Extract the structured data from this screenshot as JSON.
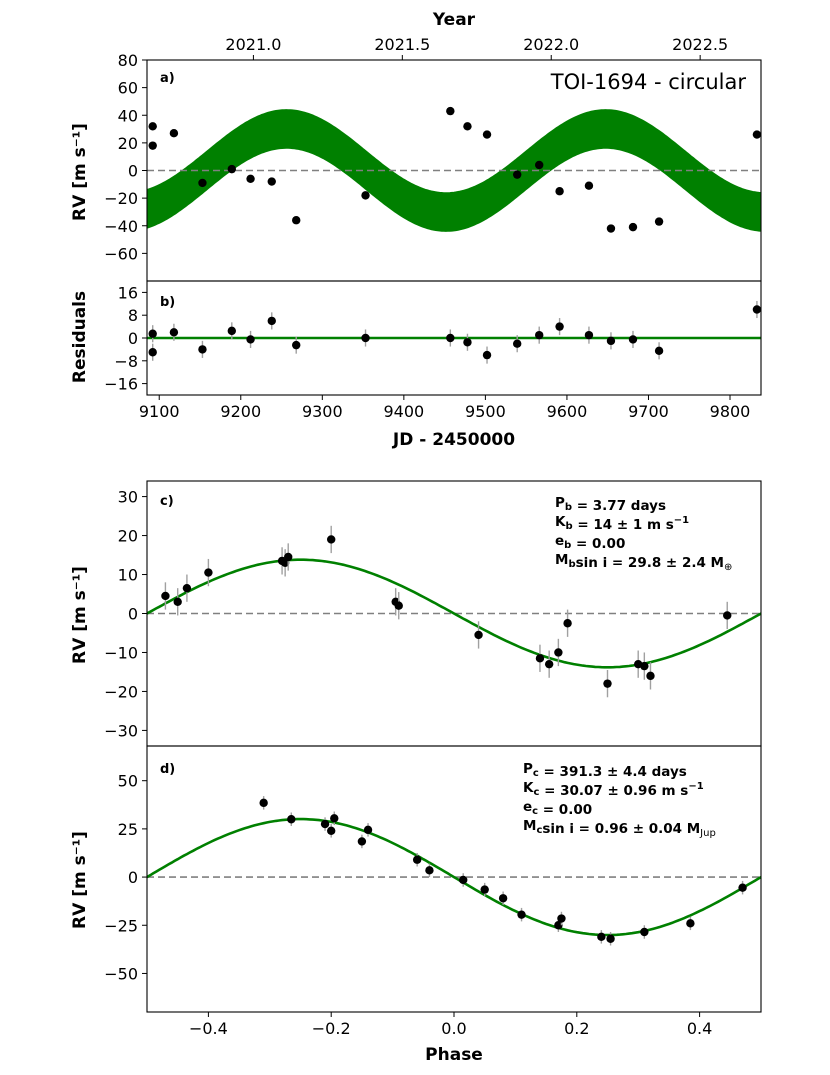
{
  "colors": {
    "model": "#008000",
    "zero": "#808080",
    "point": "#000000",
    "errorbar": "#a0a0a0"
  },
  "chart_data": [
    {
      "id": "a",
      "type": "scatter",
      "tag": "a)",
      "title": "TOI-1694 - circular",
      "top_axis": {
        "label": "Year",
        "ticks": [
          "2021.0",
          "2021.5",
          "2022.0",
          "2022.5"
        ]
      },
      "ylabel": "RV [m s⁻¹]",
      "xlim": [
        9085,
        9838
      ],
      "ylim": [
        -80,
        80
      ],
      "yticks": [
        -60,
        -40,
        -20,
        0,
        20,
        40,
        60,
        80
      ],
      "model_band": {
        "center_amp": 30.07,
        "half_width": 14,
        "period": 391.3,
        "t0": 9354
      },
      "points": [
        {
          "x": 9092,
          "y": 32
        },
        {
          "x": 9092,
          "y": 18
        },
        {
          "x": 9118,
          "y": 27
        },
        {
          "x": 9153,
          "y": -9
        },
        {
          "x": 9189,
          "y": 1
        },
        {
          "x": 9212,
          "y": -6
        },
        {
          "x": 9238,
          "y": -8
        },
        {
          "x": 9268,
          "y": -36
        },
        {
          "x": 9353,
          "y": -18
        },
        {
          "x": 9457,
          "y": 43
        },
        {
          "x": 9478,
          "y": 32
        },
        {
          "x": 9502,
          "y": 26
        },
        {
          "x": 9539,
          "y": -3
        },
        {
          "x": 9566,
          "y": 4
        },
        {
          "x": 9591,
          "y": -15
        },
        {
          "x": 9627,
          "y": -11
        },
        {
          "x": 9654,
          "y": -42
        },
        {
          "x": 9681,
          "y": -41
        },
        {
          "x": 9713,
          "y": -37
        },
        {
          "x": 9833,
          "y": 26
        }
      ]
    },
    {
      "id": "b",
      "type": "scatter",
      "tag": "b)",
      "ylabel": "Residuals",
      "xlabel": "JD - 2450000",
      "xlim": [
        9085,
        9838
      ],
      "ylim": [
        -20,
        20
      ],
      "yticks": [
        -16,
        -8,
        0,
        8,
        16
      ],
      "xticks": [
        9100,
        9200,
        9300,
        9400,
        9500,
        9600,
        9700,
        9800
      ],
      "points": [
        {
          "x": 9092,
          "y": 1.5,
          "err": 3
        },
        {
          "x": 9092,
          "y": -5,
          "err": 3
        },
        {
          "x": 9118,
          "y": 2,
          "err": 3
        },
        {
          "x": 9153,
          "y": -4,
          "err": 3
        },
        {
          "x": 9189,
          "y": 2.5,
          "err": 3
        },
        {
          "x": 9212,
          "y": -0.5,
          "err": 3
        },
        {
          "x": 9238,
          "y": 6,
          "err": 3
        },
        {
          "x": 9268,
          "y": -2.5,
          "err": 3
        },
        {
          "x": 9353,
          "y": 0,
          "err": 3
        },
        {
          "x": 9457,
          "y": 0,
          "err": 3
        },
        {
          "x": 9478,
          "y": -1.5,
          "err": 3
        },
        {
          "x": 9502,
          "y": -6,
          "err": 3
        },
        {
          "x": 9539,
          "y": -2,
          "err": 3
        },
        {
          "x": 9566,
          "y": 1,
          "err": 3
        },
        {
          "x": 9591,
          "y": 4,
          "err": 3
        },
        {
          "x": 9627,
          "y": 1,
          "err": 3
        },
        {
          "x": 9654,
          "y": -1,
          "err": 3
        },
        {
          "x": 9681,
          "y": -0.5,
          "err": 3
        },
        {
          "x": 9713,
          "y": -4.5,
          "err": 3
        },
        {
          "x": 9833,
          "y": 10,
          "err": 3
        }
      ]
    },
    {
      "id": "c",
      "type": "scatter",
      "tag": "c)",
      "ylabel": "RV [m s⁻¹]",
      "xlim": [
        -0.5,
        0.5
      ],
      "ylim": [
        -34,
        34
      ],
      "yticks": [
        -30,
        -20,
        -10,
        0,
        10,
        20,
        30
      ],
      "model": {
        "K": 13.8
      },
      "annotations": [
        {
          "base": "P",
          "sub": "b",
          "rest": " = 3.77 days"
        },
        {
          "base": "K",
          "sub": "b",
          "rest": " = 14 ± 1 m s",
          "sup": "−1"
        },
        {
          "base": "e",
          "sub": "b",
          "rest": " = 0.00"
        },
        {
          "base": "M",
          "sub": "b",
          "rest": "sin i = 29.8 ± 2.4 M",
          "sub2": "⊕"
        }
      ],
      "points": [
        {
          "x": -0.47,
          "y": 4.5,
          "err": 3.5
        },
        {
          "x": -0.45,
          "y": 3,
          "err": 3.5
        },
        {
          "x": -0.435,
          "y": 6.5,
          "err": 3.5
        },
        {
          "x": -0.4,
          "y": 10.5,
          "err": 3.5
        },
        {
          "x": -0.28,
          "y": 13.5,
          "err": 3.5
        },
        {
          "x": -0.275,
          "y": 13,
          "err": 3.5
        },
        {
          "x": -0.27,
          "y": 14.5,
          "err": 3.5
        },
        {
          "x": -0.2,
          "y": 19,
          "err": 3.5
        },
        {
          "x": -0.095,
          "y": 3,
          "err": 3.5
        },
        {
          "x": -0.09,
          "y": 2,
          "err": 3.5
        },
        {
          "x": 0.04,
          "y": -5.5,
          "err": 3.5
        },
        {
          "x": 0.14,
          "y": -11.5,
          "err": 3.5
        },
        {
          "x": 0.155,
          "y": -13,
          "err": 3.5
        },
        {
          "x": 0.17,
          "y": -10,
          "err": 3.5
        },
        {
          "x": 0.185,
          "y": -2.5,
          "err": 3.5
        },
        {
          "x": 0.25,
          "y": -18,
          "err": 3.5
        },
        {
          "x": 0.3,
          "y": -13,
          "err": 3.5
        },
        {
          "x": 0.31,
          "y": -13.5,
          "err": 3.5
        },
        {
          "x": 0.32,
          "y": -16,
          "err": 3.5
        },
        {
          "x": 0.445,
          "y": -0.5,
          "err": 3.5
        }
      ]
    },
    {
      "id": "d",
      "type": "scatter",
      "tag": "d)",
      "ylabel": "RV [m s⁻¹]",
      "xlabel": "Phase",
      "xlim": [
        -0.5,
        0.5
      ],
      "ylim": [
        -70,
        68
      ],
      "yticks": [
        -50,
        -25,
        0,
        25,
        50
      ],
      "xticks": [
        -0.4,
        -0.2,
        0.0,
        0.2,
        0.4
      ],
      "xtick_labels": [
        "−0.4",
        "−0.2",
        "0.0",
        "0.2",
        "0.4"
      ],
      "model": {
        "K": 30.07
      },
      "annotations": [
        {
          "base": "P",
          "sub": "c",
          "rest": " = 391.3 ± 4.4 days"
        },
        {
          "base": "K",
          "sub": "c",
          "rest": " = 30.07 ± 0.96 m s",
          "sup": "−1"
        },
        {
          "base": "e",
          "sub": "c",
          "rest": " = 0.00"
        },
        {
          "base": "M",
          "sub": "c",
          "rest": "sin i = 0.96 ± 0.04 M",
          "sub2": "Jup"
        }
      ],
      "points": [
        {
          "x": -0.31,
          "y": 38.5,
          "err": 3.5
        },
        {
          "x": -0.265,
          "y": 30,
          "err": 3.5
        },
        {
          "x": -0.21,
          "y": 27.5,
          "err": 3.5
        },
        {
          "x": -0.2,
          "y": 24,
          "err": 3.5
        },
        {
          "x": -0.195,
          "y": 30.5,
          "err": 3.5
        },
        {
          "x": -0.15,
          "y": 18.5,
          "err": 3.5
        },
        {
          "x": -0.14,
          "y": 24.5,
          "err": 3.5
        },
        {
          "x": -0.06,
          "y": 9,
          "err": 3.5
        },
        {
          "x": -0.04,
          "y": 3.5,
          "err": 3.5
        },
        {
          "x": 0.015,
          "y": -1.5,
          "err": 3.5
        },
        {
          "x": 0.05,
          "y": -6.5,
          "err": 3.5
        },
        {
          "x": 0.08,
          "y": -11,
          "err": 3.5
        },
        {
          "x": 0.11,
          "y": -19.5,
          "err": 3.5
        },
        {
          "x": 0.17,
          "y": -25,
          "err": 3.5
        },
        {
          "x": 0.175,
          "y": -21.5,
          "err": 3.5
        },
        {
          "x": 0.24,
          "y": -31,
          "err": 3.5
        },
        {
          "x": 0.255,
          "y": -32,
          "err": 3.5
        },
        {
          "x": 0.31,
          "y": -28.5,
          "err": 3.5
        },
        {
          "x": 0.385,
          "y": -24,
          "err": 3.5
        },
        {
          "x": 0.47,
          "y": -5.5,
          "err": 3.5
        }
      ]
    }
  ]
}
